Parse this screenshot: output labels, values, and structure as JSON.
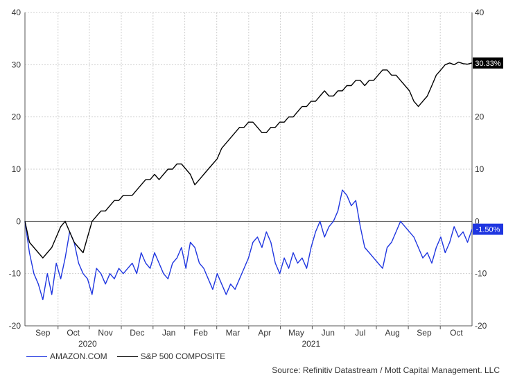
{
  "chart_data": {
    "type": "line",
    "title": "",
    "xlabel": "",
    "ylabel": "",
    "ylim": [
      -20,
      40
    ],
    "yticks": [
      -20,
      -10,
      0,
      10,
      20,
      30,
      40
    ],
    "grid": true,
    "x_range": [
      "2020-08-17",
      "2021-10-26"
    ],
    "month_ticks": [
      {
        "label": "Sep",
        "t": 0.04
      },
      {
        "label": "Oct",
        "t": 0.108
      },
      {
        "label": "Nov",
        "t": 0.18
      },
      {
        "label": "Dec",
        "t": 0.251
      },
      {
        "label": "Jan",
        "t": 0.322
      },
      {
        "label": "Feb",
        "t": 0.393
      },
      {
        "label": "Mar",
        "t": 0.465
      },
      {
        "label": "Apr",
        "t": 0.536
      },
      {
        "label": "May",
        "t": 0.607
      },
      {
        "label": "Jun",
        "t": 0.678
      },
      {
        "label": "Jul",
        "t": 0.75
      },
      {
        "label": "Aug",
        "t": 0.822
      },
      {
        "label": "Sep",
        "t": 0.893
      },
      {
        "label": "Oct",
        "t": 0.965
      }
    ],
    "year_labels": [
      {
        "label": "2020",
        "t": 0.14
      },
      {
        "label": "2021",
        "t": 0.64
      }
    ],
    "series": [
      {
        "name": "AMAZON.COM",
        "color": "#1f36e0",
        "end_label": "-1.50%",
        "t": [
          0,
          0.01,
          0.02,
          0.03,
          0.04,
          0.05,
          0.06,
          0.07,
          0.08,
          0.09,
          0.1,
          0.11,
          0.12,
          0.13,
          0.14,
          0.15,
          0.16,
          0.17,
          0.18,
          0.19,
          0.2,
          0.21,
          0.22,
          0.23,
          0.24,
          0.25,
          0.26,
          0.27,
          0.28,
          0.29,
          0.3,
          0.31,
          0.32,
          0.33,
          0.34,
          0.35,
          0.36,
          0.37,
          0.38,
          0.39,
          0.4,
          0.41,
          0.42,
          0.43,
          0.44,
          0.45,
          0.46,
          0.47,
          0.48,
          0.49,
          0.5,
          0.51,
          0.52,
          0.53,
          0.54,
          0.55,
          0.56,
          0.57,
          0.58,
          0.59,
          0.6,
          0.61,
          0.62,
          0.63,
          0.64,
          0.65,
          0.66,
          0.67,
          0.68,
          0.69,
          0.7,
          0.71,
          0.72,
          0.73,
          0.74,
          0.75,
          0.76,
          0.77,
          0.78,
          0.79,
          0.8,
          0.81,
          0.82,
          0.83,
          0.84,
          0.85,
          0.86,
          0.87,
          0.88,
          0.89,
          0.9,
          0.91,
          0.92,
          0.93,
          0.94,
          0.95,
          0.96,
          0.97,
          0.98,
          0.99,
          1.0
        ],
        "values": [
          0,
          -6,
          -10,
          -12,
          -15,
          -10,
          -14,
          -8,
          -11,
          -7,
          -2,
          -4,
          -8,
          -10,
          -11,
          -14,
          -9,
          -10,
          -12,
          -10,
          -11,
          -9,
          -10,
          -9,
          -8,
          -10,
          -6,
          -8,
          -9,
          -6,
          -8,
          -10,
          -11,
          -8,
          -7,
          -5,
          -9,
          -4,
          -5,
          -8,
          -9,
          -11,
          -13,
          -10,
          -12,
          -14,
          -12,
          -13,
          -11,
          -9,
          -7,
          -4,
          -3,
          -5,
          -2,
          -4,
          -8,
          -10,
          -7,
          -9,
          -6,
          -8,
          -7,
          -9,
          -5,
          -2,
          0,
          -3,
          -1,
          0,
          2,
          6,
          5,
          3,
          4,
          -1,
          -5,
          -6,
          -7,
          -8,
          -9,
          -5,
          -4,
          -2,
          0,
          -1,
          -2,
          -3,
          -5,
          -7,
          -6,
          -8,
          -5,
          -3,
          -6,
          -4,
          -1,
          -3,
          -2,
          -4,
          -1.5
        ]
      },
      {
        "name": "S&P 500 COMPOSITE",
        "color": "#000000",
        "end_label": "30.33%",
        "t": [
          0,
          0.01,
          0.02,
          0.03,
          0.04,
          0.05,
          0.06,
          0.07,
          0.08,
          0.09,
          0.1,
          0.11,
          0.12,
          0.13,
          0.14,
          0.15,
          0.16,
          0.17,
          0.18,
          0.19,
          0.2,
          0.21,
          0.22,
          0.23,
          0.24,
          0.25,
          0.26,
          0.27,
          0.28,
          0.29,
          0.3,
          0.31,
          0.32,
          0.33,
          0.34,
          0.35,
          0.36,
          0.37,
          0.38,
          0.39,
          0.4,
          0.41,
          0.42,
          0.43,
          0.44,
          0.45,
          0.46,
          0.47,
          0.48,
          0.49,
          0.5,
          0.51,
          0.52,
          0.53,
          0.54,
          0.55,
          0.56,
          0.57,
          0.58,
          0.59,
          0.6,
          0.61,
          0.62,
          0.63,
          0.64,
          0.65,
          0.66,
          0.67,
          0.68,
          0.69,
          0.7,
          0.71,
          0.72,
          0.73,
          0.74,
          0.75,
          0.76,
          0.77,
          0.78,
          0.79,
          0.8,
          0.81,
          0.82,
          0.83,
          0.84,
          0.85,
          0.86,
          0.87,
          0.88,
          0.89,
          0.9,
          0.91,
          0.92,
          0.93,
          0.94,
          0.95,
          0.96,
          0.97,
          0.98,
          0.99,
          1.0
        ],
        "values": [
          0,
          -4,
          -5,
          -6,
          -7,
          -6,
          -5,
          -3,
          -1,
          0,
          -2,
          -4,
          -5,
          -6,
          -3,
          0,
          1,
          2,
          2,
          3,
          4,
          4,
          5,
          5,
          5,
          6,
          7,
          8,
          8,
          9,
          8,
          9,
          10,
          10,
          11,
          11,
          10,
          9,
          7,
          8,
          9,
          10,
          11,
          12,
          14,
          15,
          16,
          17,
          18,
          18,
          19,
          19,
          18,
          17,
          17,
          18,
          18,
          19,
          19,
          20,
          20,
          21,
          22,
          22,
          23,
          23,
          24,
          25,
          24,
          24,
          25,
          25,
          26,
          26,
          27,
          27,
          26,
          27,
          27,
          28,
          29,
          29,
          28,
          28,
          27,
          26,
          25,
          23,
          22,
          23,
          24,
          26,
          28,
          29,
          30,
          30.33,
          30,
          30.5,
          30.2,
          30.1,
          30.33
        ]
      }
    ],
    "legend": [
      "AMAZON.COM",
      "S&P 500 COMPOSITE"
    ],
    "legend_position": "bottom-left",
    "source": "Source: Refinitiv Datastream / Mott Capital Management. LLC"
  }
}
